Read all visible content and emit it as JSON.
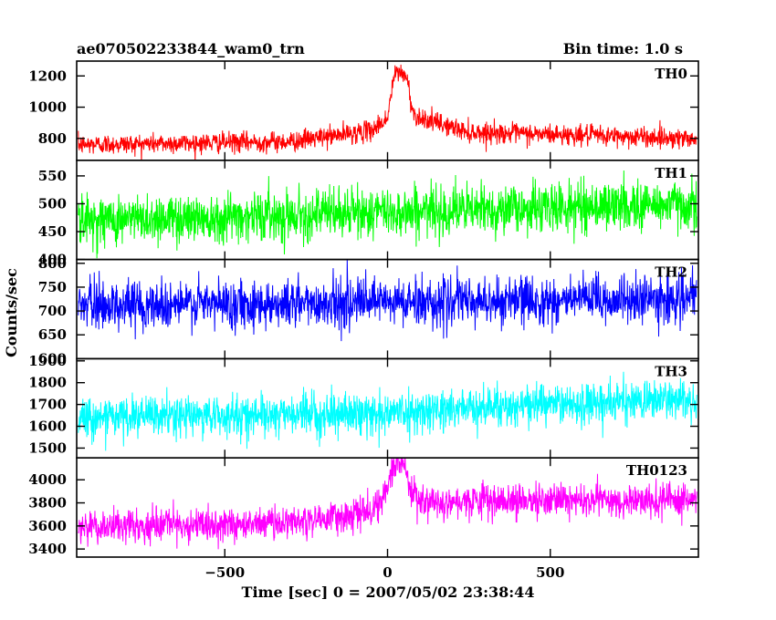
{
  "header": {
    "title": "ae070502233844_wam0_trn",
    "bin_time": "Bin time: 1.0 s"
  },
  "chart_data": {
    "type": "line",
    "xlabel": "Time [sec] 0 = 2007/05/02 23:38:44",
    "ylabel": "Counts/sec",
    "xlim": [
      -955,
      955
    ],
    "xticks": [
      -500,
      0,
      500
    ],
    "xtick_labels": [
      "−500",
      "0",
      "500"
    ],
    "grid": false,
    "panels": [
      {
        "name": "TH0",
        "color": "#ff0000",
        "ylim": [
          660,
          1295
        ],
        "yticks": [
          800,
          1000,
          1200
        ],
        "ytick_labels": [
          "800",
          "1000",
          "1200"
        ],
        "baseline": [
          [
            -950,
            760
          ],
          [
            -300,
            780
          ],
          [
            -50,
            850
          ],
          [
            0,
            930
          ],
          [
            20,
            1200
          ],
          [
            40,
            1230
          ],
          [
            60,
            1180
          ],
          [
            80,
            950
          ],
          [
            150,
            900
          ],
          [
            250,
            840
          ],
          [
            950,
            800
          ]
        ],
        "noise": 32
      },
      {
        "name": "TH1",
        "color": "#00ff00",
        "ylim": [
          400,
          578
        ],
        "yticks": [
          400,
          450,
          500,
          550
        ],
        "ytick_labels": [
          "400",
          "450",
          "500",
          "550"
        ],
        "baseline": [
          [
            -950,
            470
          ],
          [
            0,
            485
          ],
          [
            950,
            500
          ]
        ],
        "noise": 22
      },
      {
        "name": "TH2",
        "color": "#0000ff",
        "ylim": [
          600,
          808
        ],
        "yticks": [
          600,
          650,
          700,
          750,
          800
        ],
        "ytick_labels": [
          "600",
          "650",
          "700",
          "750",
          "800"
        ],
        "baseline": [
          [
            -950,
            712
          ],
          [
            0,
            718
          ],
          [
            950,
            725
          ]
        ],
        "noise": 25
      },
      {
        "name": "TH3",
        "color": "#00ffff",
        "ylim": [
          1455,
          1910
        ],
        "yticks": [
          1500,
          1600,
          1700,
          1800,
          1900
        ],
        "ytick_labels": [
          "1500",
          "1600",
          "1700",
          "1800",
          "1900"
        ],
        "baseline": [
          [
            -950,
            1640
          ],
          [
            0,
            1660
          ],
          [
            300,
            1690
          ],
          [
            950,
            1725
          ]
        ],
        "noise": 45
      },
      {
        "name": "TH0123",
        "color": "#ff00ff",
        "ylim": [
          3330,
          4190
        ],
        "yticks": [
          3400,
          3600,
          3800,
          4000
        ],
        "ytick_labels": [
          "3400",
          "3600",
          "3800",
          "4000"
        ],
        "baseline": [
          [
            -950,
            3580
          ],
          [
            -300,
            3630
          ],
          [
            -50,
            3720
          ],
          [
            0,
            3900
          ],
          [
            20,
            4150
          ],
          [
            45,
            4170
          ],
          [
            65,
            4000
          ],
          [
            90,
            3820
          ],
          [
            950,
            3820
          ]
        ],
        "noise": 70
      }
    ]
  }
}
